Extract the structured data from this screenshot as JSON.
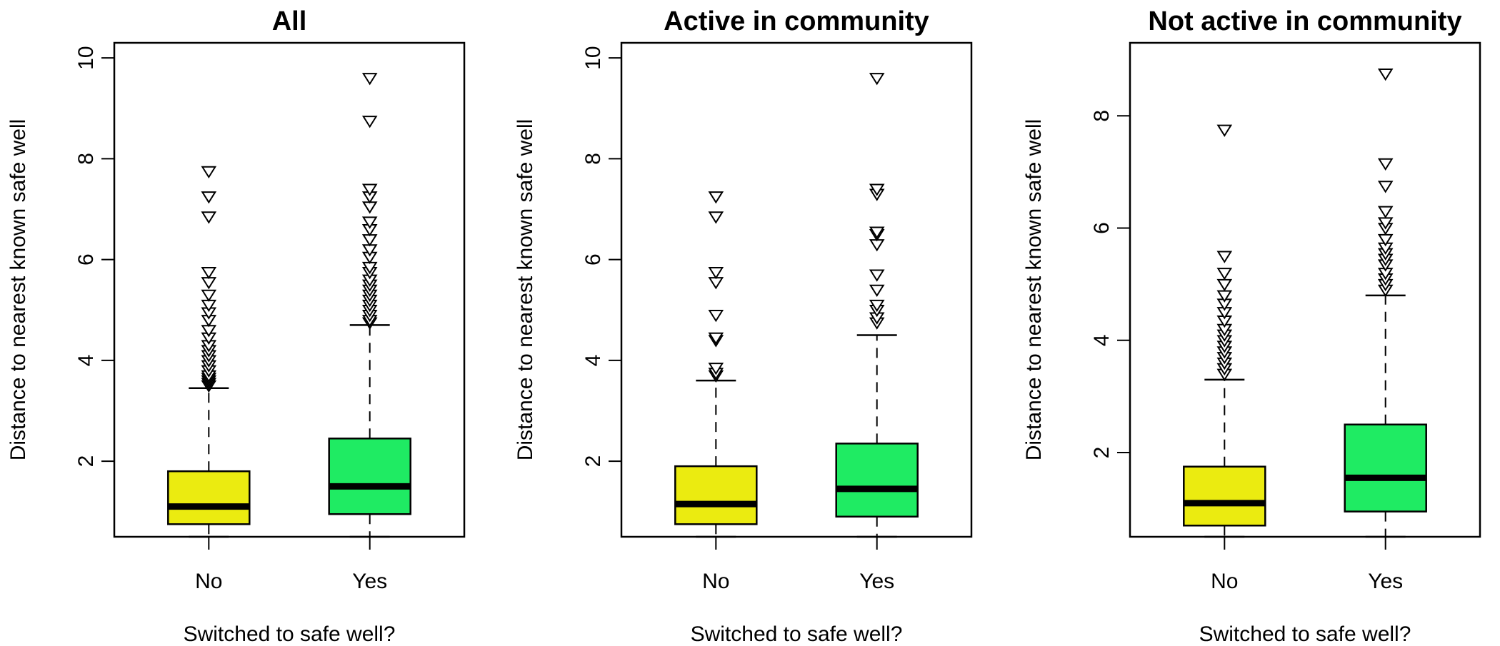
{
  "chart_data": [
    {
      "type": "box",
      "title": "All",
      "xlabel": "Switched to safe well?",
      "ylabel": "Distance to nearest known safe well",
      "categories": [
        "No",
        "Yes"
      ],
      "ylim": [
        0.5,
        10.3
      ],
      "yticks": [
        2,
        4,
        6,
        8,
        10
      ],
      "grid": false,
      "boxes": [
        {
          "category": "No",
          "color": "#EBEB10",
          "min": 0.5,
          "q1": 0.75,
          "median": 1.1,
          "q3": 1.8,
          "whisker_high": 3.45,
          "outliers": [
            3.5,
            3.55,
            3.6,
            3.65,
            3.7,
            3.8,
            3.9,
            4.0,
            4.1,
            4.2,
            4.3,
            4.45,
            4.6,
            4.8,
            4.95,
            5.1,
            5.3,
            5.55,
            5.75,
            6.85,
            7.25,
            7.75
          ]
        },
        {
          "category": "Yes",
          "color": "#1FEB63",
          "min": 0.5,
          "q1": 0.95,
          "median": 1.5,
          "q3": 2.45,
          "whisker_high": 4.7,
          "outliers": [
            4.75,
            4.8,
            4.9,
            5.0,
            5.1,
            5.2,
            5.3,
            5.4,
            5.5,
            5.6,
            5.75,
            5.85,
            6.05,
            6.2,
            6.4,
            6.6,
            6.75,
            7.05,
            7.25,
            7.4,
            8.75,
            9.6
          ]
        }
      ]
    },
    {
      "type": "box",
      "title": "Active in community",
      "xlabel": "Switched to safe well?",
      "ylabel": "Distance to nearest known safe well",
      "categories": [
        "No",
        "Yes"
      ],
      "ylim": [
        0.5,
        10.3
      ],
      "yticks": [
        2,
        4,
        6,
        8,
        10
      ],
      "grid": false,
      "boxes": [
        {
          "category": "No",
          "color": "#EBEB10",
          "min": 0.5,
          "q1": 0.75,
          "median": 1.15,
          "q3": 1.9,
          "whisker_high": 3.6,
          "outliers": [
            3.7,
            3.75,
            3.85,
            4.4,
            4.45,
            4.9,
            5.55,
            5.75,
            6.85,
            7.25
          ]
        },
        {
          "category": "Yes",
          "color": "#1FEB63",
          "min": 0.5,
          "q1": 0.9,
          "median": 1.45,
          "q3": 2.35,
          "whisker_high": 4.5,
          "outliers": [
            4.75,
            4.85,
            5.0,
            5.1,
            5.4,
            5.7,
            6.3,
            6.5,
            6.55,
            7.3,
            7.4,
            9.6
          ]
        }
      ]
    },
    {
      "type": "box",
      "title": "Not active in community",
      "xlabel": "Switched to safe well?",
      "ylabel": "Distance to nearest known safe well",
      "categories": [
        "No",
        "Yes"
      ],
      "ylim": [
        0.5,
        9.3
      ],
      "yticks": [
        2,
        4,
        6,
        8
      ],
      "grid": false,
      "boxes": [
        {
          "category": "No",
          "color": "#EBEB10",
          "min": 0.5,
          "q1": 0.7,
          "median": 1.1,
          "q3": 1.75,
          "whisker_high": 3.3,
          "outliers": [
            3.4,
            3.5,
            3.6,
            3.7,
            3.8,
            3.9,
            4.0,
            4.1,
            4.2,
            4.35,
            4.5,
            4.65,
            4.8,
            5.0,
            5.2,
            5.5,
            7.75
          ]
        },
        {
          "category": "Yes",
          "color": "#1FEB63",
          "min": 0.5,
          "q1": 0.95,
          "median": 1.55,
          "q3": 2.5,
          "whisker_high": 4.8,
          "outliers": [
            4.9,
            5.0,
            5.1,
            5.2,
            5.35,
            5.45,
            5.55,
            5.65,
            5.8,
            6.0,
            6.1,
            6.3,
            6.75,
            7.15,
            8.75
          ]
        }
      ]
    }
  ]
}
